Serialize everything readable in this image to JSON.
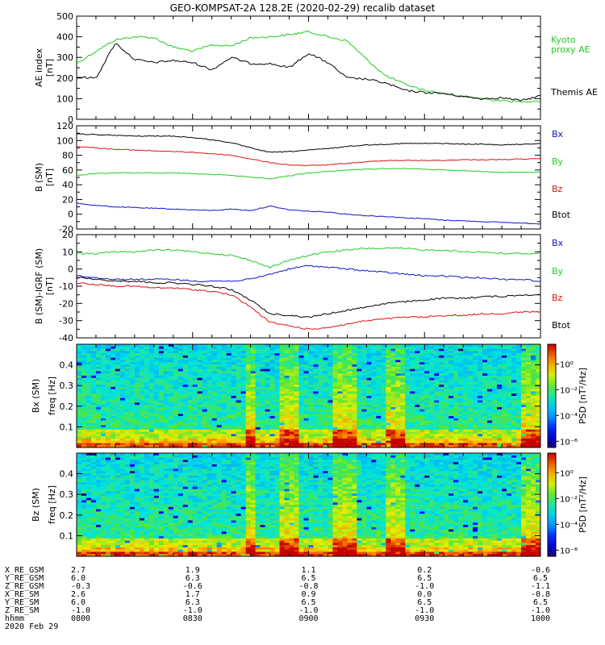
{
  "title": "GEO-KOMPSAT-2A 128.2E (2020-02-29) recalib dataset",
  "colors": {
    "black": "#000000",
    "green": "#22cc22",
    "red": "#dd1111",
    "blue": "#1111cc",
    "bright_green": "#00e000"
  },
  "chart_data": [
    {
      "type": "line",
      "panel": "ae",
      "ylabel": "AE index",
      "yunit": "[nT]",
      "ylim": [
        0,
        500
      ],
      "yticks": [
        0,
        100,
        200,
        300,
        400,
        500
      ],
      "x": [
        "0800",
        "0805",
        "0810",
        "0815",
        "0820",
        "0825",
        "0830",
        "0835",
        "0840",
        "0845",
        "0850",
        "0855",
        "0900",
        "0905",
        "0910",
        "0915",
        "0920",
        "0925",
        "0930",
        "0935",
        "0940",
        "0945",
        "0950",
        "0955",
        "1000"
      ],
      "series": [
        {
          "name": "Kyoto proxy AE",
          "label_lines": [
            "Kyoto",
            "proxy AE"
          ],
          "color": "green",
          "values": [
            270,
            330,
            385,
            400,
            395,
            350,
            330,
            360,
            355,
            395,
            400,
            410,
            425,
            400,
            380,
            290,
            210,
            170,
            140,
            125,
            110,
            100,
            90,
            85,
            90
          ]
        },
        {
          "name": "Themis AE",
          "color": "black",
          "values": [
            205,
            200,
            370,
            290,
            275,
            285,
            275,
            240,
            300,
            270,
            270,
            250,
            320,
            275,
            200,
            195,
            175,
            140,
            130,
            125,
            110,
            100,
            105,
            90,
            115
          ]
        }
      ]
    },
    {
      "type": "line",
      "panel": "b_sm",
      "ylabel": "B (SM)",
      "yunit": "[nT]",
      "ylim": [
        -20,
        120
      ],
      "yticks": [
        -20,
        0,
        20,
        40,
        60,
        80,
        100,
        120
      ],
      "x": [
        "0800",
        "0805",
        "0810",
        "0815",
        "0820",
        "0825",
        "0830",
        "0835",
        "0840",
        "0845",
        "0850",
        "0855",
        "0900",
        "0905",
        "0910",
        "0915",
        "0920",
        "0925",
        "0930",
        "0935",
        "0940",
        "0945",
        "0950",
        "0955",
        "1000"
      ],
      "series": [
        {
          "name": "Bx",
          "color": "blue",
          "values": [
            15,
            12,
            10,
            9,
            8,
            7,
            6,
            5,
            7,
            5,
            11,
            6,
            4,
            3,
            0,
            -2,
            -3,
            -5,
            -6,
            -8,
            -9,
            -10,
            -11,
            -12,
            -13
          ]
        },
        {
          "name": "By",
          "color": "green",
          "values": [
            53,
            55,
            56,
            56,
            56,
            56,
            55,
            54,
            53,
            50,
            48,
            52,
            56,
            58,
            60,
            61,
            62,
            62,
            61,
            60,
            59,
            58,
            57,
            57,
            57
          ]
        },
        {
          "name": "Bz",
          "color": "red",
          "values": [
            92,
            90,
            88,
            87,
            86,
            85,
            84,
            82,
            80,
            75,
            70,
            67,
            66,
            67,
            69,
            71,
            73,
            73,
            73,
            73,
            74,
            74,
            74,
            75,
            75
          ]
        },
        {
          "name": "Btot",
          "color": "black",
          "values": [
            109,
            108,
            107,
            106,
            106,
            106,
            104,
            101,
            97,
            90,
            84,
            85,
            87,
            89,
            92,
            94,
            95,
            96,
            96,
            96,
            95,
            95,
            94,
            95,
            96
          ]
        }
      ]
    },
    {
      "type": "line",
      "panel": "db_sm",
      "ylabel": "B (SM)-IGRF (SM)",
      "yunit": "[nT]",
      "ylim": [
        -40,
        20
      ],
      "yticks": [
        -40,
        -30,
        -20,
        -10,
        0,
        10,
        20
      ],
      "x": [
        "0800",
        "0805",
        "0810",
        "0815",
        "0820",
        "0825",
        "0830",
        "0835",
        "0840",
        "0845",
        "0850",
        "0855",
        "0900",
        "0905",
        "0910",
        "0915",
        "0920",
        "0925",
        "0930",
        "0935",
        "0940",
        "0945",
        "0950",
        "0955",
        "1000"
      ],
      "series": [
        {
          "name": "Bx",
          "color": "blue",
          "values": [
            -4,
            -5,
            -6,
            -6,
            -6,
            -6,
            -7,
            -7,
            -7,
            -6,
            -3,
            0,
            2,
            1,
            0,
            -1,
            -2,
            -3,
            -4,
            -4,
            -5,
            -5,
            -6,
            -6,
            -7
          ]
        },
        {
          "name": "By",
          "color": "green",
          "values": [
            9,
            9,
            10,
            10,
            11,
            11,
            10,
            9,
            8,
            5,
            1,
            5,
            8,
            10,
            11,
            12,
            12,
            12,
            11,
            11,
            10,
            10,
            9,
            9,
            9
          ]
        },
        {
          "name": "Bz",
          "color": "red",
          "values": [
            -8,
            -9,
            -10,
            -10,
            -11,
            -11,
            -12,
            -13,
            -15,
            -22,
            -31,
            -33,
            -35,
            -34,
            -32,
            -30,
            -29,
            -28,
            -28,
            -27,
            -27,
            -26,
            -26,
            -25,
            -25
          ]
        },
        {
          "name": "Btot",
          "color": "black",
          "values": [
            -5,
            -6,
            -7,
            -7,
            -8,
            -8,
            -9,
            -10,
            -12,
            -18,
            -26,
            -27,
            -28,
            -26,
            -24,
            -22,
            -20,
            -19,
            -18,
            -17,
            -17,
            -16,
            -16,
            -15,
            -15
          ]
        }
      ]
    },
    {
      "type": "heatmap",
      "panel": "spec_bx",
      "ylabel": "Bx (SM)",
      "ylabel2": "freq [Hz]",
      "ylim": [
        0,
        0.5
      ],
      "yticks": [
        "0.1",
        "0.2",
        "0.3",
        "0.4"
      ],
      "colorbar_label": "PSD [nT²/Hz]",
      "colorbar_ticks": [
        "10⁰",
        "10⁻²",
        "10⁻⁴",
        "10⁻⁶"
      ],
      "active_intervals": [
        [
          0.36,
          0.38
        ],
        [
          0.43,
          0.47
        ],
        [
          0.55,
          0.6
        ],
        [
          0.66,
          0.7
        ],
        [
          0.95,
          0.99
        ]
      ]
    },
    {
      "type": "heatmap",
      "panel": "spec_bz",
      "ylabel": "Bz (SM)",
      "ylabel2": "freq [Hz]",
      "ylim": [
        0,
        0.5
      ],
      "yticks": [
        "0.1",
        "0.2",
        "0.3",
        "0.4"
      ],
      "colorbar_label": "PSD [nT²/Hz]",
      "colorbar_ticks": [
        "10⁰",
        "10⁻²",
        "10⁻⁴",
        "10⁻⁶"
      ],
      "active_intervals": [
        [
          0.36,
          0.38
        ],
        [
          0.43,
          0.47
        ],
        [
          0.55,
          0.6
        ],
        [
          0.66,
          0.7
        ],
        [
          0.95,
          0.99
        ]
      ]
    }
  ],
  "ephemeris": {
    "row_labels": [
      "X_RE_GSM",
      "Y_RE_GSM",
      "Z_RE_GSM",
      "X_RE_SM",
      "Y_RE_SM",
      "Z_RE_SM",
      "hhmm"
    ],
    "columns": [
      [
        "2.7",
        "6.0",
        "-0.3",
        "2.6",
        "6.0",
        "-1.0",
        "0800"
      ],
      [
        "1.9",
        "6.3",
        "-0.6",
        "1.7",
        "6.3",
        "-1.0",
        "0830"
      ],
      [
        "1.1",
        "6.5",
        "-0.8",
        "0.9",
        "6.5",
        "-1.0",
        "0900"
      ],
      [
        "0.2",
        "6.5",
        "-1.0",
        "0.0",
        "6.5",
        "-1.0",
        "0930"
      ],
      [
        "-0.6",
        "6.5",
        "-1.1",
        "-0.8",
        "6.5",
        "-1.0",
        "1000"
      ]
    ],
    "date": "2020 Feb 29"
  }
}
